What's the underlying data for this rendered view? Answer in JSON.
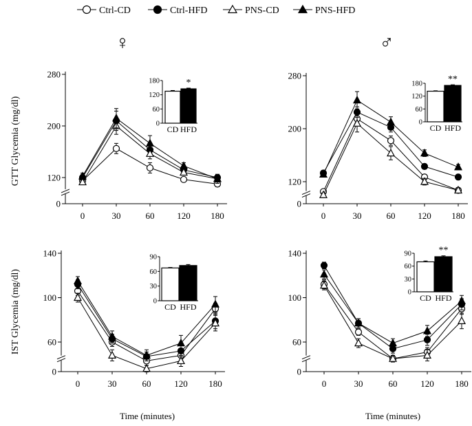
{
  "legend": [
    {
      "label": "Ctrl-CD",
      "marker": "circle-open-icon"
    },
    {
      "label": "Ctrl-HFD",
      "marker": "circle-filled-icon"
    },
    {
      "label": "PNS-CD",
      "marker": "triangle-open-icon"
    },
    {
      "label": "PNS-HFD",
      "marker": "triangle-filled-icon"
    }
  ],
  "sex_symbols": {
    "female": "♀",
    "male": "♂"
  },
  "row_labels": {
    "gtt": "GTT Glycemia  (mg/dl)",
    "ist": "IST Glycemia  (mg/dl)"
  },
  "x_axis_label": "Time  (minutes)",
  "chart_data": [
    {
      "type": "line",
      "id": "gtt-female",
      "panel": "top-left",
      "sex": "female",
      "ylabel": "GTT Glycemia  (mg/dl)",
      "xlabel": "",
      "categories": [
        "0",
        "30",
        "60",
        "120",
        "180"
      ],
      "ylim": [
        0,
        280
      ],
      "yticks": [
        0,
        120,
        200,
        280
      ],
      "axis_break": true,
      "series": [
        {
          "name": "Ctrl-CD",
          "marker": "circle-open",
          "values": [
            115,
            165,
            135,
            117,
            110
          ],
          "errors": [
            4,
            8,
            8,
            4,
            4
          ]
        },
        {
          "name": "Ctrl-HFD",
          "marker": "circle-filled",
          "values": [
            120,
            208,
            163,
            132,
            120
          ],
          "errors": [
            5,
            15,
            10,
            5,
            5
          ]
        },
        {
          "name": "PNS-CD",
          "marker": "triangle-open",
          "values": [
            113,
            200,
            157,
            128,
            118
          ],
          "errors": [
            4,
            13,
            8,
            4,
            7
          ]
        },
        {
          "name": "PNS-HFD",
          "marker": "triangle-filled",
          "values": [
            122,
            212,
            173,
            138,
            118
          ],
          "errors": [
            5,
            15,
            12,
            5,
            5
          ]
        }
      ],
      "inset": {
        "type": "bar",
        "categories": [
          "CD",
          "HFD"
        ],
        "values": [
          135,
          145
        ],
        "errors": [
          3,
          3
        ],
        "ylim": [
          0,
          180
        ],
        "yticks": [
          0,
          60,
          120,
          180
        ],
        "significance": "*"
      }
    },
    {
      "type": "line",
      "id": "gtt-male",
      "panel": "top-right",
      "sex": "male",
      "ylabel": "",
      "xlabel": "",
      "categories": [
        "0",
        "30",
        "60",
        "120",
        "180"
      ],
      "ylim": [
        0,
        280
      ],
      "yticks": [
        0,
        120,
        200,
        280
      ],
      "axis_break": true,
      "series": [
        {
          "name": "Ctrl-CD",
          "marker": "circle-open",
          "values": [
            105,
            215,
            182,
            127,
            107
          ],
          "errors": [
            3,
            8,
            7,
            4,
            3
          ]
        },
        {
          "name": "Ctrl-HFD",
          "marker": "circle-filled",
          "values": [
            133,
            225,
            202,
            143,
            127
          ],
          "errors": [
            4,
            8,
            7,
            4,
            4
          ]
        },
        {
          "name": "PNS-CD",
          "marker": "triangle-open",
          "values": [
            100,
            208,
            163,
            120,
            107
          ],
          "errors": [
            3,
            13,
            10,
            5,
            3
          ]
        },
        {
          "name": "PNS-HFD",
          "marker": "triangle-filled",
          "values": [
            131,
            243,
            210,
            163,
            142
          ],
          "errors": [
            4,
            13,
            8,
            5,
            4
          ]
        }
      ],
      "inset": {
        "type": "bar",
        "categories": [
          "CD",
          "HFD"
        ],
        "values": [
          143,
          170
        ],
        "errors": [
          2,
          3
        ],
        "ylim": [
          0,
          180
        ],
        "yticks": [
          0,
          60,
          120,
          180
        ],
        "significance": "**"
      }
    },
    {
      "type": "line",
      "id": "ist-female",
      "panel": "bottom-left",
      "sex": "female",
      "ylabel": "IST Glycemia  (mg/dl)",
      "xlabel": "Time  (minutes)",
      "categories": [
        "0",
        "30",
        "60",
        "120",
        "180"
      ],
      "ylim": [
        0,
        140
      ],
      "yticks": [
        0,
        60,
        100,
        140
      ],
      "axis_break": true,
      "series": [
        {
          "name": "Ctrl-CD",
          "marker": "circle-open",
          "values": [
            106,
            60,
            43,
            48,
            90
          ],
          "errors": [
            4,
            4,
            4,
            5,
            5
          ]
        },
        {
          "name": "Ctrl-HFD",
          "marker": "circle-filled",
          "values": [
            112,
            63,
            47,
            52,
            79
          ],
          "errors": [
            4,
            4,
            4,
            5,
            7
          ]
        },
        {
          "name": "PNS-CD",
          "marker": "triangle-open",
          "values": [
            100,
            48,
            36,
            43,
            77
          ],
          "errors": [
            4,
            5,
            3,
            5,
            7
          ]
        },
        {
          "name": "PNS-HFD",
          "marker": "triangle-filled",
          "values": [
            115,
            65,
            48,
            59,
            94
          ],
          "errors": [
            4,
            5,
            5,
            7,
            7
          ]
        }
      ],
      "inset": {
        "type": "bar",
        "categories": [
          "CD",
          "HFD"
        ],
        "values": [
          67,
          72
        ],
        "errors": [
          1,
          2
        ],
        "ylim": [
          0,
          90
        ],
        "yticks": [
          0,
          30,
          60,
          90
        ],
        "significance": ""
      }
    },
    {
      "type": "line",
      "id": "ist-male",
      "panel": "bottom-right",
      "sex": "male",
      "ylabel": "",
      "xlabel": "Time  (minutes)",
      "categories": [
        "0",
        "30",
        "60",
        "120",
        "180"
      ],
      "ylim": [
        0,
        140
      ],
      "yticks": [
        0,
        60,
        100,
        140
      ],
      "axis_break": true,
      "series": [
        {
          "name": "Ctrl-CD",
          "marker": "circle-open",
          "values": [
            112,
            69,
            45,
            51,
            90
          ],
          "errors": [
            4,
            3,
            3,
            4,
            5
          ]
        },
        {
          "name": "Ctrl-HFD",
          "marker": "circle-filled",
          "values": [
            129,
            77,
            54,
            62,
            94
          ],
          "errors": [
            3,
            4,
            4,
            5,
            5
          ]
        },
        {
          "name": "PNS-CD",
          "marker": "triangle-open",
          "values": [
            111,
            59,
            45,
            48,
            79
          ],
          "errors": [
            4,
            4,
            3,
            5,
            7
          ]
        },
        {
          "name": "PNS-HFD",
          "marker": "triangle-filled",
          "values": [
            121,
            77,
            59,
            70,
            97
          ],
          "errors": [
            4,
            4,
            4,
            5,
            5
          ]
        }
      ],
      "inset": {
        "type": "bar",
        "categories": [
          "CD",
          "HFD"
        ],
        "values": [
          70,
          82
        ],
        "errors": [
          2,
          2
        ],
        "ylim": [
          0,
          90
        ],
        "yticks": [
          0,
          30,
          60,
          90
        ],
        "significance": "**"
      }
    }
  ]
}
